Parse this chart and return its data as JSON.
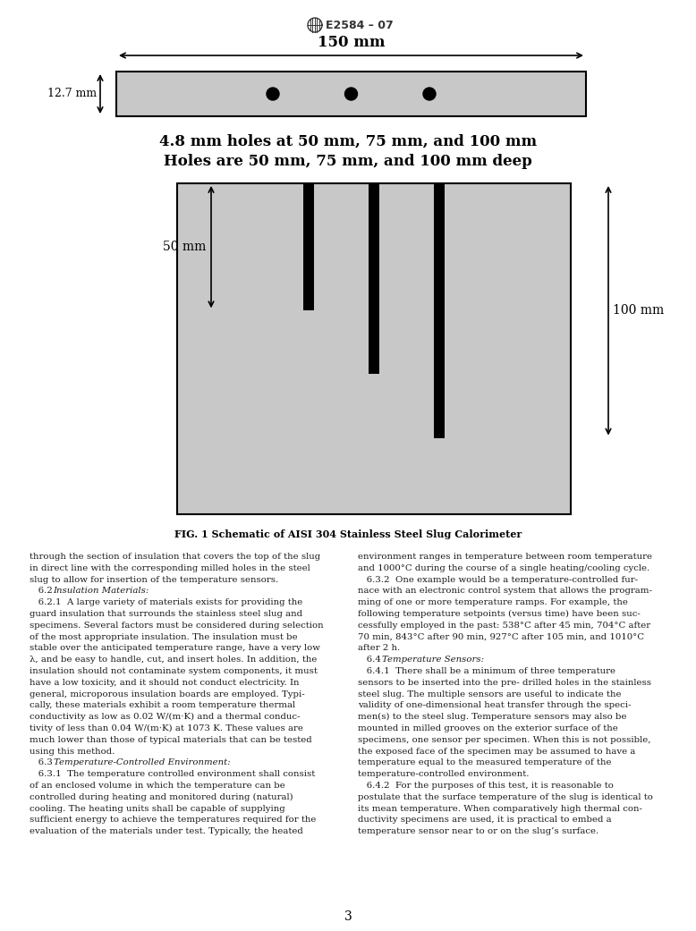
{
  "title": "E2584 – 07",
  "fig_caption": "FIG. 1 Schematic of AISI 304 Stainless Steel Slug Calorimeter",
  "dim_150mm": "150 mm",
  "dim_127mm": "12.7 mm",
  "label_holes": "4.8 mm holes at 50 mm, 75 mm, and 100 mm",
  "label_deep": "Holes are 50 mm, 75 mm, and 100 mm deep",
  "label_50mm": "50 mm",
  "label_100mm": "100 mm",
  "bg_color": "#ffffff",
  "slug_color": "#c8c8c8",
  "slug_border": "#000000",
  "body_text_color": "#1a1a1a",
  "page_number": "3",
  "col1_text": [
    "through the section of insulation that covers the top of the slug",
    "in direct line with the corresponding milled holes in the steel",
    "slug to allow for insertion of the temperature sensors.",
    "   6.2 Insulation Materials:",
    "   6.2.1  A large variety of materials exists for providing the",
    "guard insulation that surrounds the stainless steel slug and",
    "specimens. Several factors must be considered during selection",
    "of the most appropriate insulation. The insulation must be",
    "stable over the anticipated temperature range, have a very low",
    "λ, and be easy to handle, cut, and insert holes. In addition, the",
    "insulation should not contaminate system components, it must",
    "have a low toxicity, and it should not conduct electricity. In",
    "general, microporous insulation boards are employed. Typi-",
    "cally, these materials exhibit a room temperature thermal",
    "conductivity as low as 0.02 W/(m·K) and a thermal conduc-",
    "tivity of less than 0.04 W/(m·K) at 1073 K. These values are",
    "much lower than those of typical materials that can be tested",
    "using this method.",
    "   6.3 Temperature-Controlled Environment:",
    "   6.3.1  The temperature controlled environment shall consist",
    "of an enclosed volume in which the temperature can be",
    "controlled during heating and monitored during (natural)",
    "cooling. The heating units shall be capable of supplying",
    "sufficient energy to achieve the temperatures required for the",
    "evaluation of the materials under test. Typically, the heated"
  ],
  "col2_text": [
    "environment ranges in temperature between room temperature",
    "and 1000°C during the course of a single heating/cooling cycle.",
    "   6.3.2  One example would be a temperature-controlled fur-",
    "nace with an electronic control system that allows the program-",
    "ming of one or more temperature ramps. For example, the",
    "following temperature setpoints (versus time) have been suc-",
    "cessfully employed in the past: 538°C after 45 min, 704°C after",
    "70 min, 843°C after 90 min, 927°C after 105 min, and 1010°C",
    "after 2 h.",
    "   6.4 Temperature Sensors:",
    "   6.4.1  There shall be a minimum of three temperature",
    "sensors to be inserted into the pre- drilled holes in the stainless",
    "steel slug. The multiple sensors are useful to indicate the",
    "validity of one-dimensional heat transfer through the speci-",
    "men(s) to the steel slug. Temperature sensors may also be",
    "mounted in milled grooves on the exterior surface of the",
    "specimens, one sensor per specimen. When this is not possible,",
    "the exposed face of the specimen may be assumed to have a",
    "temperature equal to the measured temperature of the",
    "temperature-controlled environment.",
    "   6.4.2  For the purposes of this test, it is reasonable to",
    "postulate that the surface temperature of the slug is identical to",
    "its mean temperature. When comparatively high thermal con-",
    "ductivity specimens are used, it is practical to embed a",
    "temperature sensor near to or on the slug’s surface."
  ],
  "col1_italic_lines": [
    3,
    18
  ],
  "col2_italic_lines": [
    9
  ]
}
